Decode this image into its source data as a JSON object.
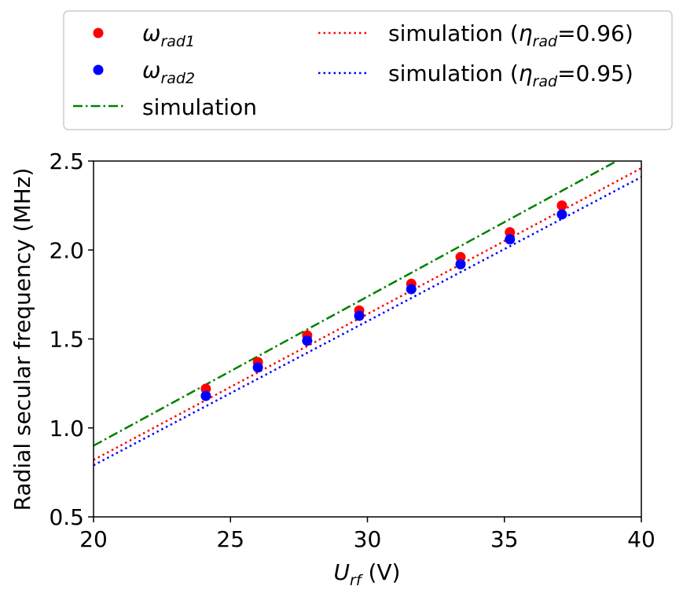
{
  "chart_data": {
    "type": "scatter",
    "xlabel": {
      "main": "U",
      "sub": "rf",
      "unit": " (V)"
    },
    "ylabel": "Radial secular frequency (MHz)",
    "xlim": [
      20,
      40
    ],
    "ylim": [
      0.5,
      2.5
    ],
    "xticks": [
      20,
      25,
      30,
      35,
      40
    ],
    "xtick_labels": [
      "20",
      "25",
      "30",
      "35",
      "40"
    ],
    "yticks": [
      0.5,
      1.0,
      1.5,
      2.0,
      2.5
    ],
    "ytick_labels": [
      "0.5",
      "1.0",
      "1.5",
      "2.0",
      "2.5"
    ],
    "grid": false,
    "legend_position": "top (outside, above plot)",
    "series": [
      {
        "name": "ω_rad1",
        "legend_main": "ω",
        "legend_sub": "rad1",
        "kind": "points",
        "color": "#ff0000",
        "x": [
          24.1,
          26.0,
          27.8,
          29.7,
          31.6,
          33.4,
          35.2,
          37.1
        ],
        "y": [
          1.22,
          1.37,
          1.52,
          1.66,
          1.81,
          1.96,
          2.1,
          2.25
        ]
      },
      {
        "name": "ω_rad2",
        "legend_main": "ω",
        "legend_sub": "rad2",
        "kind": "points",
        "color": "#0000ff",
        "x": [
          24.1,
          26.0,
          27.8,
          29.7,
          31.6,
          33.4,
          35.2,
          37.1
        ],
        "y": [
          1.18,
          1.34,
          1.49,
          1.63,
          1.78,
          1.92,
          2.06,
          2.2
        ]
      },
      {
        "name": "simulation",
        "legend_main": "simulation",
        "kind": "line",
        "style": "dashdot",
        "color": "#008000",
        "x": [
          20,
          39.1
        ],
        "y": [
          0.9,
          2.5
        ]
      },
      {
        "name": "simulation (η_rad=0.96)",
        "legend_pre": "simulation (",
        "legend_main": "η",
        "legend_sub": "rad",
        "legend_post": "=0.96)",
        "kind": "line",
        "style": "dotted",
        "color": "#ff0000",
        "x": [
          20,
          40
        ],
        "y": [
          0.82,
          2.46
        ]
      },
      {
        "name": "simulation (η_rad=0.95)",
        "legend_pre": "simulation (",
        "legend_main": "η",
        "legend_sub": "rad",
        "legend_post": "=0.95)",
        "kind": "line",
        "style": "dotted",
        "color": "#0000ff",
        "x": [
          20,
          40
        ],
        "y": [
          0.79,
          2.41
        ]
      }
    ]
  }
}
